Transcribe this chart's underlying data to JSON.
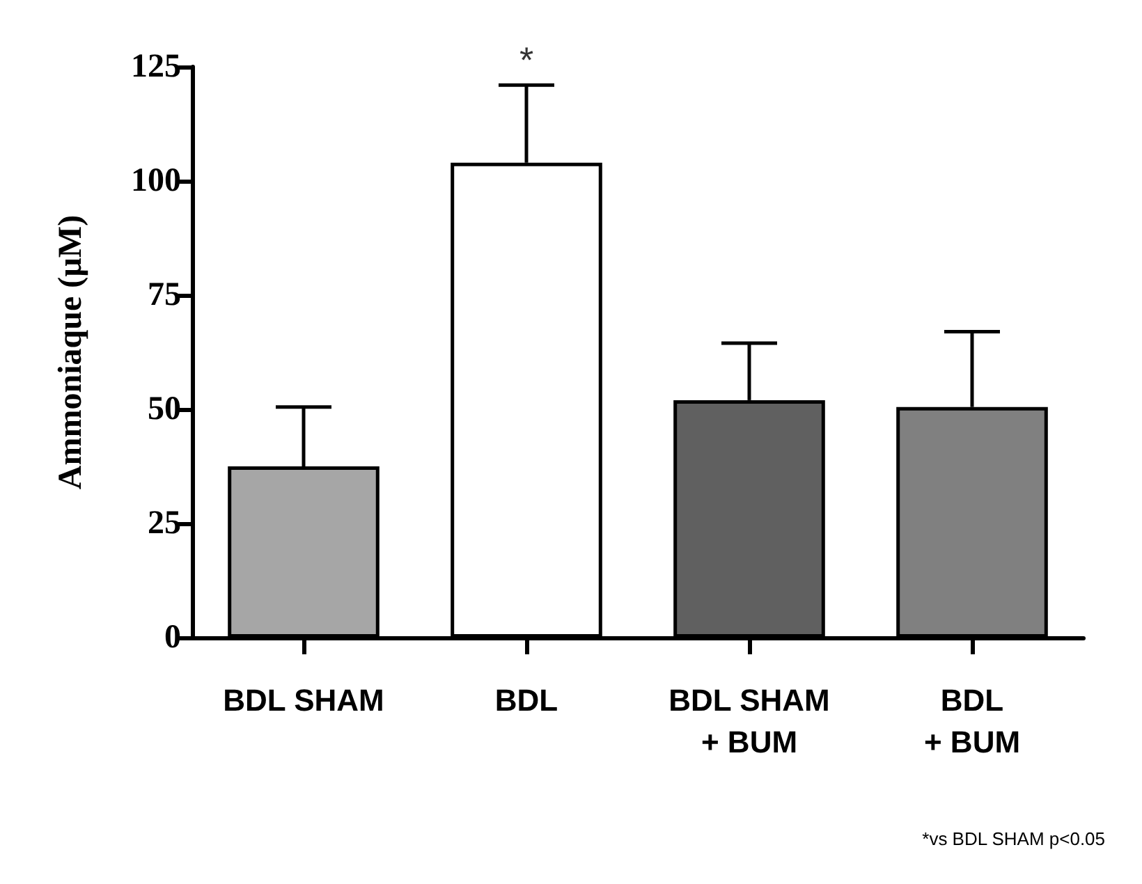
{
  "chart_data": {
    "type": "bar",
    "ylabel": "Ammoniaque (µM)",
    "categories": [
      "BDL SHAM",
      "BDL",
      "BDL SHAM\n+ BUM",
      "BDL\n+ BUM"
    ],
    "values": [
      37.5,
      104,
      52,
      50.5
    ],
    "colors": [
      "#a6a6a6",
      "#ffffff",
      "#606060",
      "#808080"
    ],
    "errors": [
      [
        37.5,
        50.5
      ],
      [
        104,
        121
      ],
      [
        52,
        64.5
      ],
      [
        50.5,
        67
      ]
    ],
    "ylim": [
      0,
      125
    ],
    "yticks": [
      0,
      25,
      50,
      75,
      100,
      125
    ],
    "grid": false,
    "annotations": [
      {
        "text": "*",
        "x": "BDL",
        "y": 121
      },
      "*vs BDL SHAM p<0.05"
    ]
  }
}
